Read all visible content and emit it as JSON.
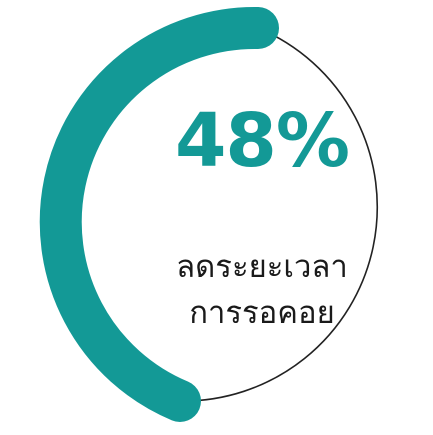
{
  "stat": {
    "value": "48%",
    "caption_line1": "ลดระยะเวลา",
    "caption_line2": "การรอคอย",
    "progress_fraction": 0.48
  },
  "colors": {
    "accent": "#139996",
    "outline": "#222222",
    "caption": "#1a1a1a",
    "background": "#ffffff"
  }
}
